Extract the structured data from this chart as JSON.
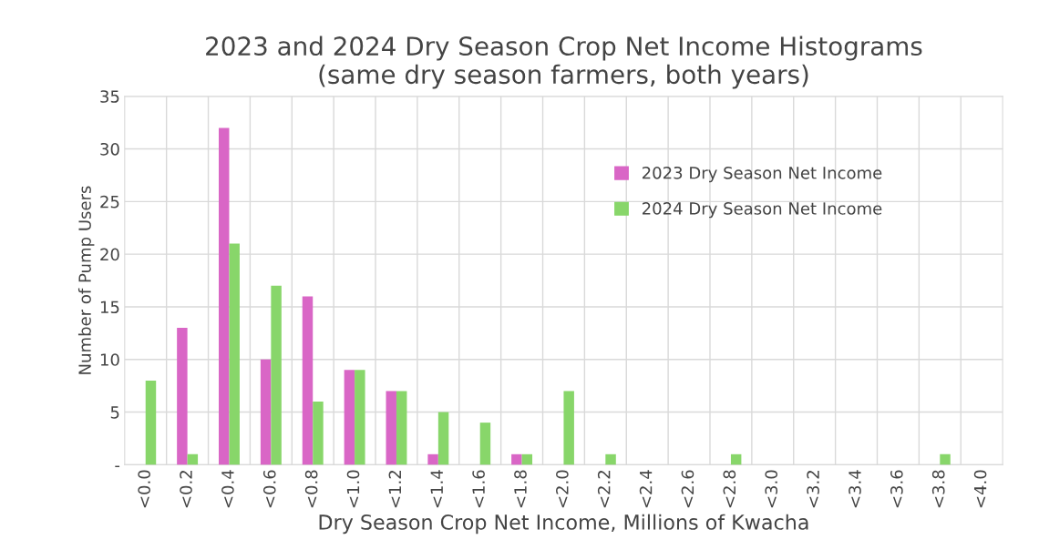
{
  "chart_data": {
    "type": "bar",
    "title": "2023 and 2024 Dry Season Crop Net Income Histograms\n(same dry season farmers, both years)",
    "xlabel": "Dry Season Crop Net Income, Millions of Kwacha",
    "ylabel": "Number of Pump Users",
    "categories": [
      "<0.0",
      "<0.2",
      "<0.4",
      "<0.6",
      "<0.8",
      "<1.0",
      "<1.2",
      "<1.4",
      "<1.6",
      "<1.8",
      "<2.0",
      "<2.2",
      "<2.4",
      "<2.6",
      "<2.8",
      "<3.0",
      "<3.2",
      "<3.4",
      "<3.6",
      "<3.8",
      "<4.0"
    ],
    "series": [
      {
        "name": "2023 Dry Season Net Income",
        "color": "#d966c6",
        "values": [
          0,
          13,
          32,
          10,
          16,
          9,
          7,
          1,
          0,
          1,
          0,
          0,
          0,
          0,
          0,
          0,
          0,
          0,
          0,
          0,
          0
        ]
      },
      {
        "name": "2024 Dry Season Net Income",
        "color": "#88d66a",
        "values": [
          8,
          1,
          21,
          17,
          6,
          9,
          7,
          5,
          4,
          1,
          7,
          1,
          0,
          0,
          1,
          0,
          0,
          0,
          0,
          1,
          0
        ]
      }
    ],
    "ylim": [
      0,
      35
    ],
    "yticks": [
      {
        "value": 0,
        "label": "-"
      },
      5,
      10,
      15,
      20,
      25,
      30,
      35
    ],
    "grid": true,
    "legend": "top right"
  }
}
